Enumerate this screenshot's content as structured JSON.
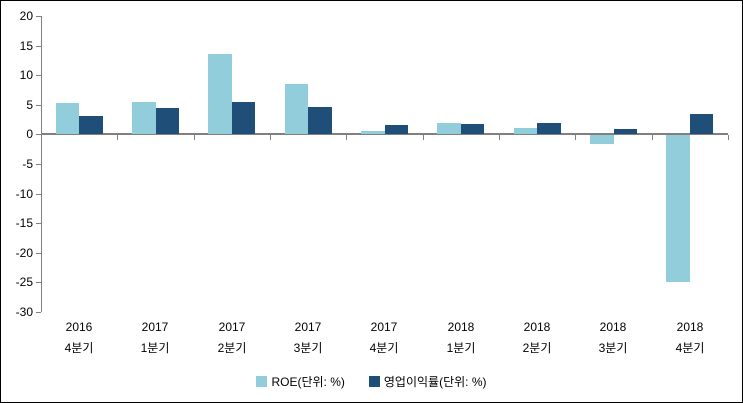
{
  "chart_data": {
    "type": "bar",
    "title": "",
    "xlabel": "",
    "ylabel": "",
    "categories": [
      [
        "2016",
        "4분기"
      ],
      [
        "2017",
        "1분기"
      ],
      [
        "2017",
        "2분기"
      ],
      [
        "2017",
        "3분기"
      ],
      [
        "2017",
        "4분기"
      ],
      [
        "2018",
        "1분기"
      ],
      [
        "2018",
        "2분기"
      ],
      [
        "2018",
        "3분기"
      ],
      [
        "2018",
        "4분기"
      ]
    ],
    "series": [
      {
        "name": "ROE(단위: %)",
        "color": "#92CDDC",
        "values": [
          5.3,
          5.5,
          13.6,
          8.5,
          0.6,
          2.0,
          1.1,
          -1.4,
          -24.8
        ]
      },
      {
        "name": "영업이익률(단위: %)",
        "color": "#1F4E79",
        "values": [
          3.2,
          4.5,
          5.4,
          4.6,
          1.6,
          1.7,
          2.0,
          1.0,
          3.4
        ]
      }
    ],
    "ylim": [
      -30,
      20
    ],
    "yticks": [
      20,
      15,
      10,
      5,
      0,
      -5,
      -10,
      -15,
      -20,
      -25,
      -30
    ],
    "grid": false,
    "legend_position": "bottom",
    "axis_color": "#808080",
    "text_color": "#000000",
    "background_color": "#ffffff"
  }
}
